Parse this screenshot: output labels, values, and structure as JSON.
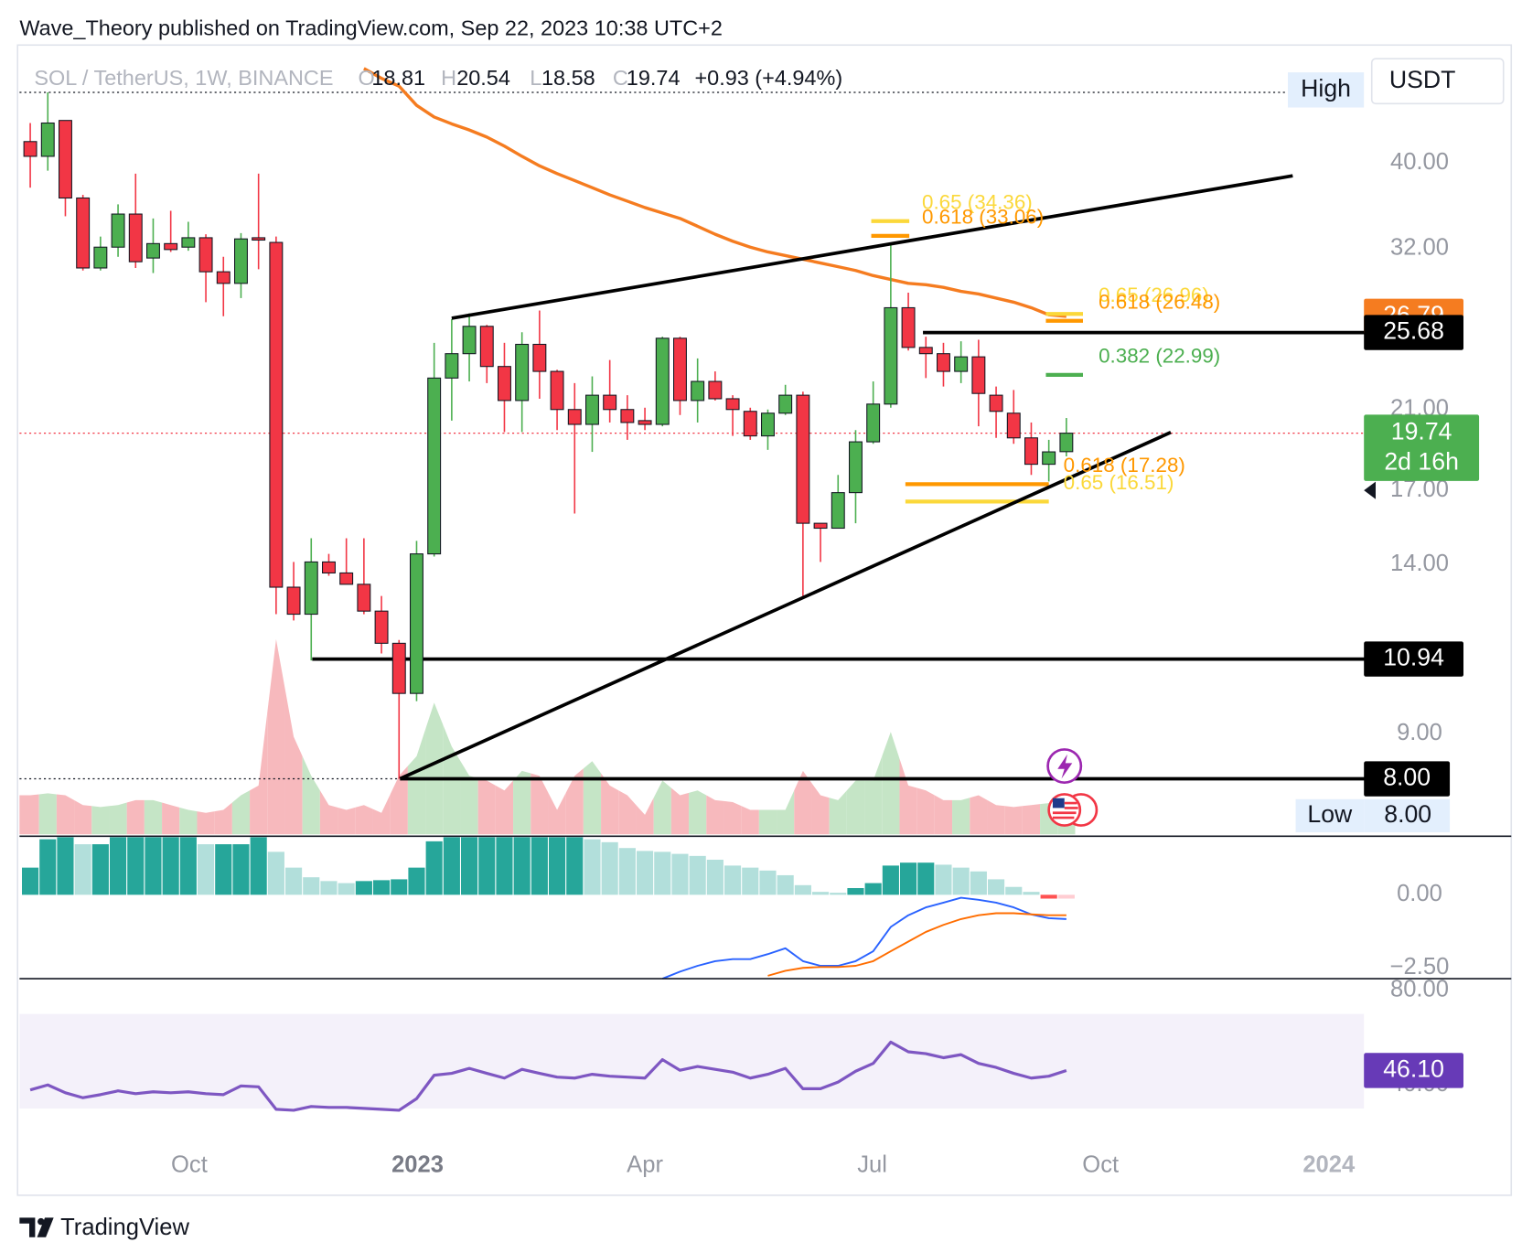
{
  "header": {
    "publisher": "Wave_Theory published on TradingView.com, Sep 22, 2023 10:38 UTC+2"
  },
  "footer": {
    "brand": "TradingView"
  },
  "chart_data": [
    {
      "type": "candlestick",
      "title": "SOL / TetherUS, 1W, BINANCE",
      "legend_keys": [
        "O",
        "H",
        "L",
        "C"
      ],
      "change": "+0.93 (+4.94%)",
      "currency": "USDT",
      "high_label": "High",
      "low_label": "Low",
      "countdown": "2d 16h",
      "log_scale": true,
      "ylim": [
        6.92,
        53.2
      ],
      "yticks": [
        {
          "value": 40,
          "label": "40.00"
        },
        {
          "value": 32,
          "label": "32.00"
        },
        {
          "value": 21,
          "label": "21.00"
        },
        {
          "value": 17,
          "label": "17.00"
        },
        {
          "value": 14,
          "label": "14.00"
        },
        {
          "value": 9,
          "label": "9.00"
        }
      ],
      "up_color": "#4caf50",
      "down_color": "#f23645",
      "open": [
        42.3,
        40.7,
        44.7,
        36.5,
        30.4,
        32.1,
        35.0,
        31.2,
        32.4,
        32.1,
        32.9,
        30.1,
        29.2,
        32.9,
        32.5,
        13.2,
        12.3,
        14.1,
        13.7,
        13.3,
        12.4,
        11.4,
        10.0,
        14.4,
        22.8,
        24.3,
        26.1,
        23.5,
        21.5,
        24.9,
        23.2,
        21.0,
        20.2,
        21.8,
        21.0,
        20.4,
        20.2,
        25.3,
        21.5,
        22.6,
        21.6,
        20.9,
        19.6,
        20.8,
        21.8,
        15.6,
        15.4,
        16.9,
        19.3,
        21.3,
        27.4,
        24.7,
        24.3,
        23.2,
        24.1,
        21.8,
        20.8,
        19.5,
        18.2,
        18.81
      ],
      "high": [
        44.4,
        48.1,
        44.7,
        36.8,
        33.0,
        35.9,
        38.9,
        34.6,
        35.3,
        34.3,
        33.2,
        31.3,
        33.3,
        38.9,
        33.0,
        14.1,
        15.0,
        14.4,
        15.0,
        15.0,
        12.9,
        11.5,
        14.9,
        25.0,
        26.6,
        27.0,
        26.2,
        25.0,
        25.7,
        27.2,
        23.3,
        22.5,
        22.9,
        23.9,
        21.8,
        21.1,
        25.4,
        25.4,
        24.0,
        23.2,
        21.8,
        21.1,
        21.0,
        22.4,
        22.0,
        15.6,
        17.7,
        19.9,
        22.6,
        32.4,
        28.5,
        25.4,
        25.0,
        25.1,
        25.2,
        22.3,
        22.1,
        20.3,
        19.4,
        20.54
      ],
      "low": [
        37.5,
        39.2,
        34.8,
        30.2,
        30.2,
        31.3,
        30.4,
        30.0,
        31.7,
        31.8,
        27.8,
        26.8,
        28.1,
        30.3,
        12.3,
        12.1,
        10.9,
        13.6,
        13.3,
        12.3,
        11.1,
        8.0,
        9.8,
        14.3,
        20.4,
        22.6,
        22.5,
        19.8,
        19.8,
        21.6,
        19.9,
        16.0,
        18.8,
        20.3,
        19.4,
        19.9,
        20.1,
        20.7,
        20.3,
        21.5,
        19.6,
        19.4,
        18.9,
        20.7,
        12.9,
        14.1,
        15.4,
        15.6,
        19.2,
        21.1,
        24.5,
        22.8,
        22.3,
        22.5,
        20.1,
        19.5,
        19.2,
        17.7,
        17.4,
        18.58
      ],
      "close": [
        40.7,
        44.4,
        36.5,
        30.4,
        32.1,
        35.0,
        30.9,
        32.4,
        31.9,
        32.9,
        30.1,
        29.2,
        32.8,
        32.7,
        13.2,
        12.3,
        14.1,
        13.7,
        13.3,
        12.4,
        11.4,
        10.0,
        14.4,
        22.8,
        24.3,
        26.1,
        23.5,
        21.5,
        24.9,
        23.2,
        21.0,
        20.2,
        21.8,
        21.0,
        20.3,
        20.2,
        25.3,
        21.5,
        22.6,
        21.6,
        21.0,
        19.6,
        20.8,
        21.8,
        15.6,
        15.4,
        16.9,
        19.3,
        21.3,
        27.4,
        24.7,
        24.3,
        23.2,
        24.1,
        21.9,
        20.9,
        19.5,
        18.2,
        18.8,
        19.74
      ],
      "volume": {
        "up_color": "#c5e5c6",
        "down_color": "#f7b9bd",
        "values": [
          40,
          42,
          40,
          30,
          28,
          30,
          35,
          35,
          30,
          25,
          22,
          25,
          40,
          50,
          200,
          100,
          60,
          30,
          25,
          30,
          22,
          60,
          80,
          135,
          90,
          60,
          55,
          45,
          65,
          60,
          25,
          60,
          75,
          50,
          40,
          20,
          55,
          40,
          45,
          35,
          33,
          25,
          25,
          25,
          65,
          40,
          35,
          55,
          55,
          105,
          50,
          45,
          35,
          35,
          40,
          30,
          28,
          30,
          32,
          35
        ]
      },
      "ema": {
        "color": "#f57c20",
        "values": [
          null,
          null,
          null,
          null,
          null,
          null,
          null,
          null,
          null,
          null,
          null,
          null,
          null,
          null,
          null,
          null,
          null,
          null,
          null,
          51.2,
          49.9,
          48.9,
          46.5,
          45.1,
          44.3,
          43.6,
          42.8,
          41.8,
          40.7,
          39.7,
          38.9,
          38.2,
          37.5,
          36.8,
          36.2,
          35.6,
          35.1,
          34.6,
          33.9,
          33.2,
          32.6,
          32.1,
          31.7,
          31.4,
          31.1,
          30.8,
          30.5,
          30.2,
          29.8,
          29.5,
          29.2,
          29.1,
          28.9,
          28.6,
          28.4,
          28.1,
          27.8,
          27.4,
          26.9,
          26.79
        ]
      },
      "levels": [
        25.68,
        10.94,
        {
          "value": 8,
          "label": "8.00"
        }
      ],
      "fib_levels": [
        {
          "label": "0.65 (34.36)",
          "value": 34.36,
          "color": "#fbd83a"
        },
        {
          "label": "0.618 (33.06)",
          "value": 33.06,
          "color": "#ff9800"
        },
        {
          "label": "0.65 (26.96)",
          "value": 26.96,
          "color": "#fbd83a"
        },
        {
          "label": "0.618 (26.48)",
          "value": 26.48,
          "color": "#ff9800"
        },
        {
          "label": "0.382 (22.99)",
          "value": 22.99,
          "color": "#4caf50"
        },
        {
          "label": "0.618 (17.28)",
          "value": 17.28,
          "color": "#ff9800"
        },
        {
          "label": "0.65 (16.51)",
          "value": 16.51,
          "color": "#fbd83a"
        }
      ]
    },
    {
      "type": "macd",
      "ylim": [
        -2.87,
        1.97
      ],
      "yticks": [
        {
          "value": 0,
          "label": "0.00"
        },
        {
          "value": -2.5,
          "label": "−2.50"
        }
      ],
      "histogram_colors": [
        "#26a69a",
        "#b2dfdb",
        "#ff5252",
        "#ffcdd2"
      ],
      "histogram": [
        0.93,
        1.9,
        1.97,
        1.73,
        1.73,
        1.97,
        1.97,
        1.97,
        1.97,
        1.97,
        1.73,
        1.73,
        1.73,
        1.97,
        1.47,
        0.93,
        0.6,
        0.47,
        0.4,
        0.47,
        0.5,
        0.53,
        0.93,
        1.83,
        1.97,
        1.97,
        1.97,
        1.97,
        1.97,
        1.97,
        1.97,
        1.97,
        1.9,
        1.8,
        1.6,
        1.5,
        1.47,
        1.4,
        1.33,
        1.2,
        1.0,
        0.93,
        0.83,
        0.67,
        0.33,
        0.1,
        0.07,
        0.23,
        0.4,
        1.0,
        1.1,
        1.1,
        1.03,
        0.93,
        0.8,
        0.53,
        0.27,
        0.1,
        -0.13,
        -0.13
      ],
      "macd": {
        "color": "#2962ff",
        "values": [
          null,
          null,
          null,
          null,
          null,
          null,
          null,
          null,
          null,
          null,
          null,
          null,
          null,
          null,
          null,
          null,
          null,
          null,
          null,
          null,
          null,
          null,
          null,
          null,
          null,
          null,
          null,
          null,
          null,
          null,
          null,
          null,
          null,
          null,
          null,
          null,
          -2.87,
          -2.63,
          -2.43,
          -2.27,
          -2.2,
          -2.2,
          -2.03,
          -1.83,
          -2.27,
          -2.43,
          -2.43,
          -2.27,
          -1.93,
          -1.1,
          -0.7,
          -0.43,
          -0.27,
          -0.1,
          -0.17,
          -0.27,
          -0.43,
          -0.67,
          -0.8,
          -0.83
        ]
      },
      "signal": {
        "color": "#ff6d00",
        "values": [
          null,
          null,
          null,
          null,
          null,
          null,
          null,
          null,
          null,
          null,
          null,
          null,
          null,
          null,
          null,
          null,
          null,
          null,
          null,
          null,
          null,
          null,
          null,
          null,
          null,
          null,
          null,
          null,
          null,
          null,
          null,
          null,
          null,
          null,
          null,
          null,
          null,
          null,
          null,
          null,
          null,
          null,
          -2.77,
          -2.6,
          -2.5,
          -2.47,
          -2.47,
          -2.43,
          -2.27,
          -1.93,
          -1.6,
          -1.27,
          -1.03,
          -0.83,
          -0.7,
          -0.63,
          -0.63,
          -0.67,
          -0.7,
          -0.7
        ]
      }
    },
    {
      "type": "rsi",
      "color": "#7e57c2",
      "badge_color": "#673ab7",
      "band": [
        30,
        70
      ],
      "ylim": [
        14,
        84.9
      ],
      "yticks": [
        {
          "value": 80,
          "label": "80.00"
        },
        {
          "value": 40,
          "label": "40.00"
        }
      ],
      "xtick_labels": [
        "Oct",
        "2023",
        "Apr",
        "Jul",
        "Oct",
        "2024"
      ],
      "values": [
        37.9,
        40.0,
        36.7,
        34.6,
        35.9,
        37.5,
        36.3,
        37.1,
        36.7,
        37.1,
        36.3,
        35.9,
        39.6,
        39.2,
        29.7,
        29.3,
        30.9,
        30.5,
        30.5,
        30.1,
        29.7,
        29.3,
        34.2,
        44.1,
        44.9,
        47.0,
        44.9,
        42.9,
        46.6,
        44.9,
        43.3,
        42.9,
        44.5,
        43.7,
        43.3,
        42.9,
        50.7,
        46.2,
        47.8,
        46.6,
        45.4,
        42.9,
        44.5,
        47.0,
        38.4,
        38.4,
        41.2,
        45.8,
        49.1,
        58.1,
        54.0,
        53.2,
        51.5,
        52.8,
        49.1,
        47.4,
        44.9,
        42.9,
        43.7,
        46.1
      ],
      "value_labels": [
        null,
        null,
        null,
        null,
        null,
        null,
        null,
        null,
        null,
        null,
        null,
        null,
        null,
        null,
        null,
        null,
        null,
        null,
        null,
        null,
        null,
        null,
        null,
        null,
        null,
        null,
        null,
        null,
        null,
        null,
        null,
        null,
        null,
        null,
        null,
        null,
        null,
        null,
        null,
        null,
        null,
        null,
        null,
        null,
        null,
        null,
        null,
        null,
        null,
        null,
        null,
        null,
        null,
        null,
        null,
        null,
        null,
        null,
        null,
        "46.10"
      ]
    }
  ]
}
